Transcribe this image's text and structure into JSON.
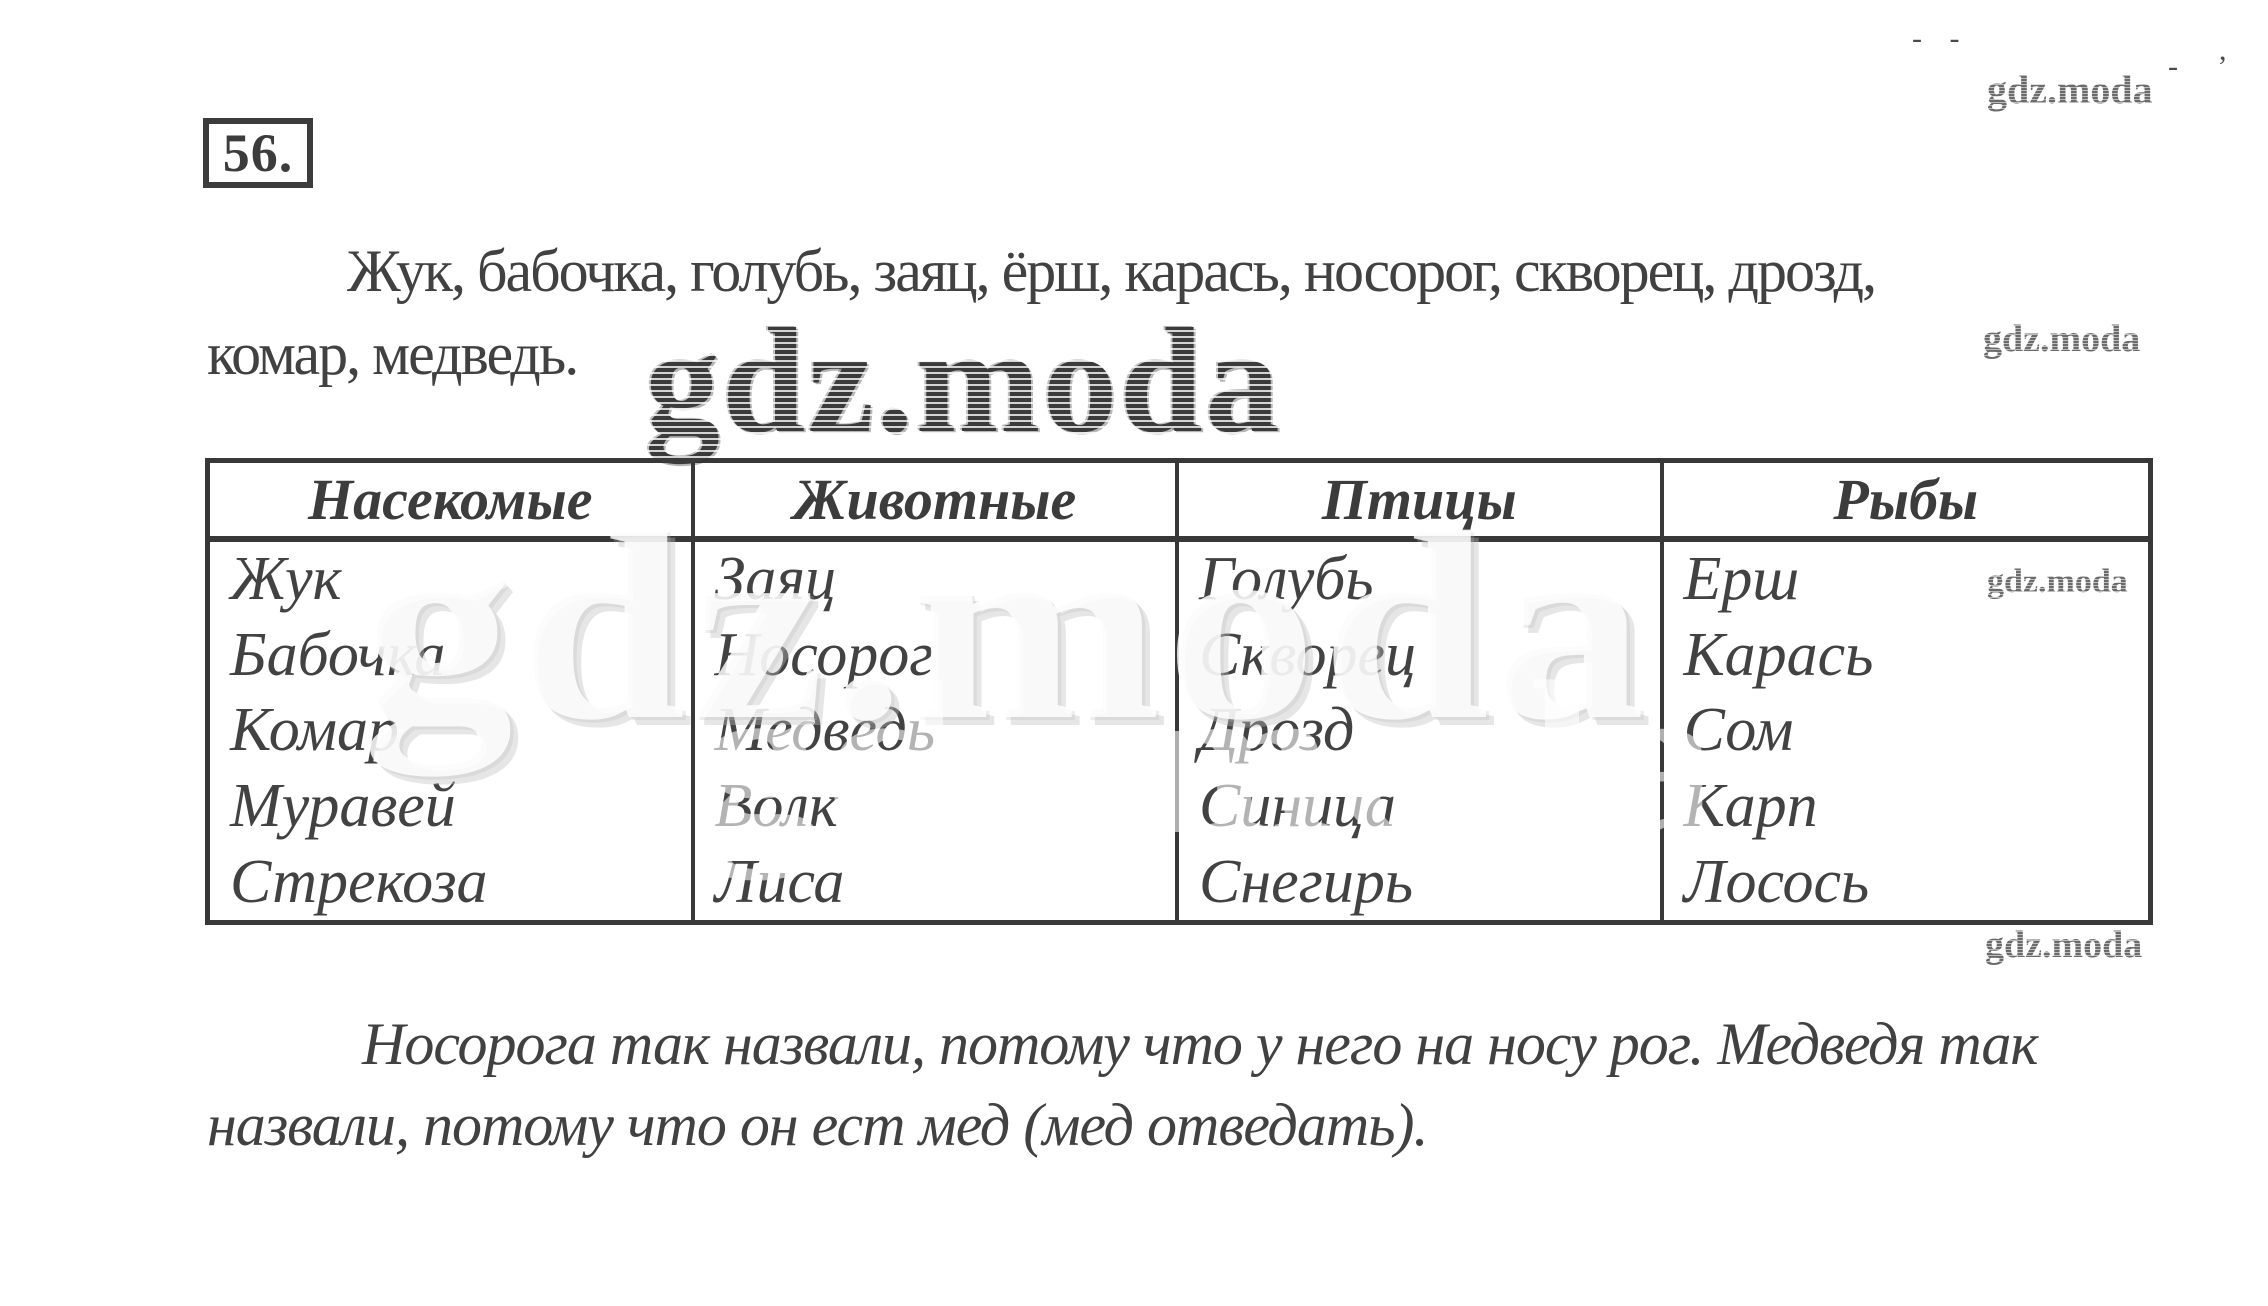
{
  "page": {
    "exercise_number": "56.",
    "intro": {
      "line1": "Жук, бабочка, голубь, заяц, ёрш, карась, носорог, скворец, дрозд,",
      "line2": "комар, медведь."
    },
    "table": {
      "headers": [
        "Насекомые",
        "Животные",
        "Птицы",
        "Рыбы"
      ],
      "rows": [
        [
          "Жук",
          "Заяц",
          "Голубь",
          "Ерш"
        ],
        [
          "Бабочка",
          "Носорог",
          "Скворец",
          "Карась"
        ],
        [
          "Комар",
          "Медведь",
          "Дрозд",
          "Сом"
        ],
        [
          "Муравей",
          "Волк",
          "Синица",
          "Карп"
        ],
        [
          "Стрекоза",
          "Лиса",
          "Снегирь",
          "Лосось"
        ]
      ]
    },
    "note": {
      "line1": "Носорога так назвали, потому что у него на носу рог. Медведя так",
      "line2": "назвали, потому что он ест мед (мед отведать)."
    },
    "watermark": {
      "brand": "gdz.moda"
    },
    "artifacts": {
      "top_dashes": "- -",
      "corner_mark": "- ’"
    }
  },
  "colors": {
    "ink": "#3e3e3e",
    "table_border": "#383838",
    "watermark_gray": "#575757",
    "background": "#ffffff"
  }
}
